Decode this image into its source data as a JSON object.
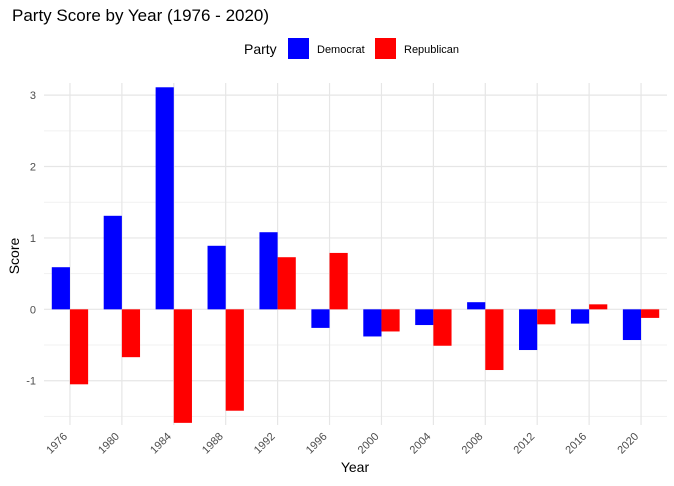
{
  "chart_data": {
    "type": "bar",
    "title": "Party Score by Year (1976 - 2020)",
    "xlabel": "Year",
    "ylabel": "Score",
    "legend": {
      "title": "Party",
      "placement": "top"
    },
    "categories": [
      "1976",
      "1980",
      "1984",
      "1988",
      "1992",
      "1996",
      "2000",
      "2004",
      "2008",
      "2012",
      "2016",
      "2020"
    ],
    "series": [
      {
        "name": "Democrat",
        "color": "#0000ff",
        "values": [
          0.59,
          1.31,
          3.11,
          0.89,
          1.08,
          -0.26,
          -0.38,
          -0.22,
          0.1,
          -0.57,
          -0.2,
          -0.43
        ]
      },
      {
        "name": "Republican",
        "color": "#ff0000",
        "values": [
          -1.05,
          -0.67,
          -1.59,
          -1.42,
          0.73,
          0.79,
          -0.31,
          -0.51,
          -0.85,
          -0.21,
          0.07,
          -0.12
        ]
      }
    ],
    "yticks": [
      -1,
      0,
      1,
      2,
      3
    ],
    "ylim": [
      -1.62,
      3.17
    ],
    "grid": true
  }
}
